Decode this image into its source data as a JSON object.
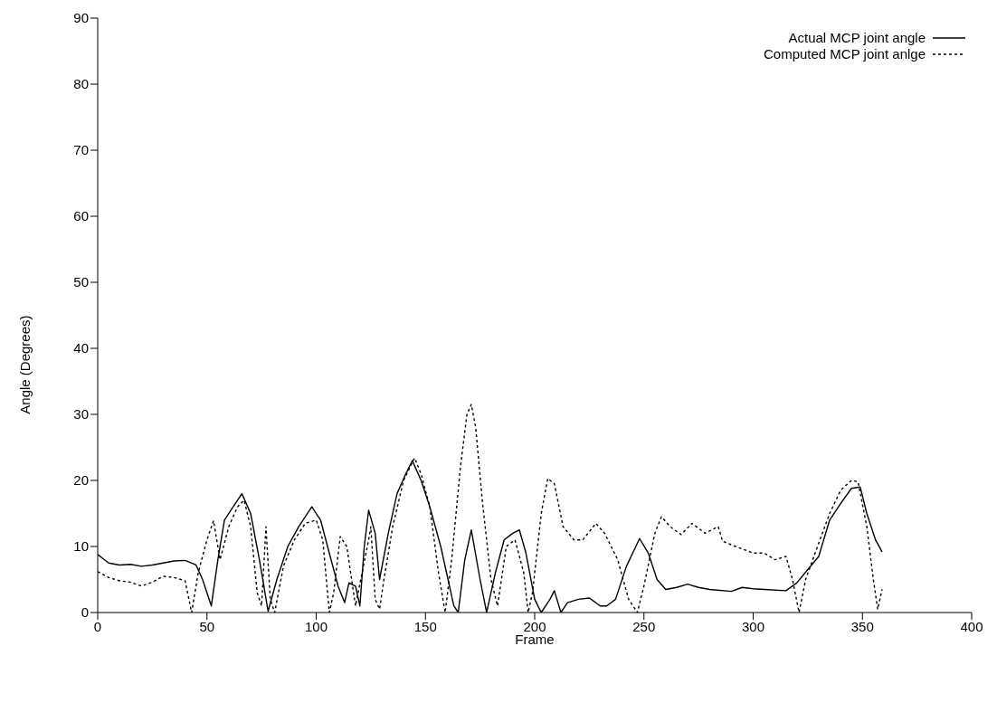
{
  "chart_data": {
    "type": "line",
    "xlabel": "Frame",
    "ylabel": "Angle (Degrees)",
    "xlim": [
      0,
      400
    ],
    "xticks": [
      0,
      50,
      100,
      150,
      200,
      250,
      300,
      350,
      400
    ],
    "ylim": [
      0,
      90
    ],
    "yticks": [
      0,
      10,
      20,
      30,
      40,
      50,
      60,
      70,
      80,
      90
    ],
    "grid": false,
    "legend": "top right",
    "marker": "none",
    "series": [
      {
        "name": "Actual MCP joint angle",
        "color": "#000000",
        "line_style": "solid",
        "x": [
          0,
          5,
          10,
          15,
          20,
          25,
          30,
          35,
          40,
          45,
          48,
          52,
          55,
          58,
          62,
          66,
          70,
          74,
          78,
          82,
          87,
          92,
          98,
          102,
          106,
          110,
          113,
          115,
          118,
          120,
          122,
          124,
          127,
          129,
          133,
          137,
          141,
          144,
          148,
          152,
          157,
          163,
          165,
          168,
          171,
          175,
          178,
          182,
          186,
          190,
          193,
          196,
          200,
          203,
          207,
          209,
          212,
          215,
          220,
          225,
          230,
          233,
          237,
          242,
          248,
          252,
          256,
          260,
          265,
          270,
          275,
          280,
          290,
          295,
          300,
          305,
          315,
          320,
          325,
          330,
          335,
          340,
          345,
          349,
          352,
          356,
          359
        ],
        "values": [
          8.8,
          7.5,
          7.2,
          7.3,
          7,
          7.2,
          7.5,
          7.8,
          7.9,
          7.2,
          5,
          1,
          8,
          14,
          16,
          18,
          15,
          8,
          0.2,
          5,
          10,
          13,
          16,
          14,
          9,
          4,
          1.5,
          4.5,
          4,
          1,
          10,
          15.5,
          12,
          5,
          12,
          18,
          21,
          23,
          20,
          16,
          10,
          1,
          0,
          8,
          12.5,
          5,
          0,
          6,
          11,
          12,
          12.5,
          9,
          2,
          0,
          2,
          3.3,
          0,
          1.5,
          2,
          2.2,
          1,
          1,
          2,
          7,
          11.2,
          9,
          5,
          3.5,
          3.8,
          4.3,
          3.8,
          3.5,
          3.2,
          3.8,
          3.6,
          3.5,
          3.3,
          4.5,
          6.5,
          8.5,
          14,
          16.5,
          18.8,
          19,
          15,
          11,
          9.2
        ]
      },
      {
        "name": "Computed MCP joint anlge",
        "color": "#000000",
        "line_style": "dotted",
        "x": [
          0,
          5,
          10,
          15,
          20,
          25,
          30,
          35,
          40,
          43,
          46,
          50,
          53,
          56,
          60,
          64,
          67,
          70,
          73,
          75,
          77,
          79,
          81,
          85,
          90,
          95,
          100,
          103,
          106,
          108,
          111,
          114,
          118,
          121,
          124,
          125,
          127,
          129,
          131,
          135,
          140,
          145,
          148,
          152,
          156,
          159,
          162,
          166,
          169,
          171,
          173,
          176,
          180,
          183,
          187,
          191,
          195,
          197,
          199,
          203,
          206,
          209,
          213,
          218,
          222,
          228,
          232,
          238,
          243,
          247,
          250,
          255,
          258,
          262,
          267,
          272,
          278,
          284,
          286,
          292,
          300,
          305,
          310,
          315,
          318,
          321,
          324,
          330,
          335,
          340,
          345,
          348,
          352,
          355,
          357,
          359
        ],
        "values": [
          6.2,
          5.3,
          4.8,
          4.6,
          4,
          4.6,
          5.5,
          5.3,
          4.8,
          0,
          6,
          11,
          13.9,
          8,
          13,
          16,
          17,
          13,
          3,
          1,
          13,
          2,
          0,
          7,
          11,
          13.5,
          14,
          11,
          0,
          3,
          11.5,
          10,
          1,
          6,
          11,
          13,
          2,
          0.5,
          5,
          13,
          20,
          23.4,
          21,
          16,
          6,
          0,
          8,
          22,
          30,
          31.5,
          28,
          17,
          5,
          1,
          10,
          11,
          6,
          0,
          3,
          15,
          20.3,
          19.5,
          13,
          11,
          11,
          13.5,
          12,
          8,
          2,
          0,
          4,
          12,
          14.5,
          13,
          11.8,
          13.5,
          12,
          13,
          10.8,
          10,
          9,
          9,
          8,
          8.5,
          5,
          0,
          5,
          10.5,
          15,
          18.5,
          20,
          19.8,
          13,
          5,
          0.5,
          3.5
        ]
      }
    ]
  }
}
